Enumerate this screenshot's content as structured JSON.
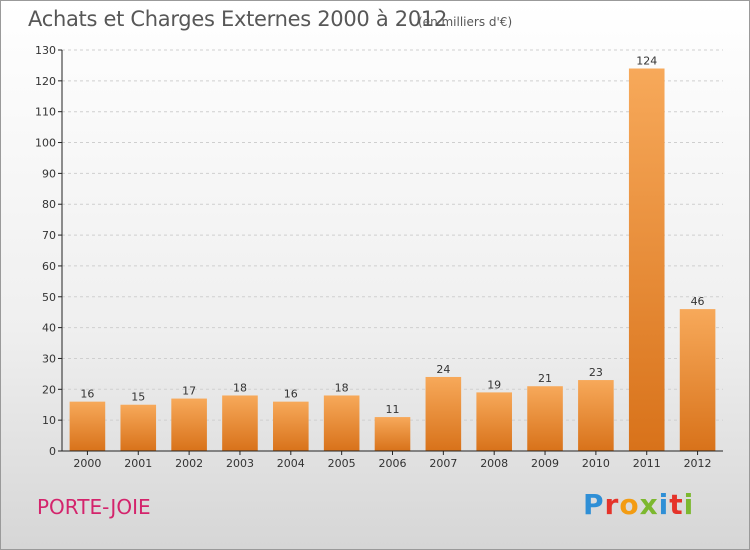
{
  "header": {
    "title": "Achats et Charges Externes 2000 à 2012",
    "subtitle": "(en milliers d'€)"
  },
  "footer": {
    "commune": "PORTE-JOIE",
    "brand": "Proxiti",
    "brand_colors": [
      "#2f8fd6",
      "#e5332a",
      "#f39c12",
      "#7cb82f",
      "#2f8fd6",
      "#e5332a",
      "#7cb82f"
    ]
  },
  "colors": {
    "bar_light": "#f7a95a",
    "bar_dark": "#d8721a",
    "grid": "#cfcfcf",
    "axis": "#222222"
  },
  "chart_data": {
    "type": "bar",
    "categories": [
      "2000",
      "2001",
      "2002",
      "2003",
      "2004",
      "2005",
      "2006",
      "2007",
      "2008",
      "2009",
      "2010",
      "2011",
      "2012"
    ],
    "values": [
      16,
      15,
      17,
      18,
      16,
      18,
      11,
      24,
      19,
      21,
      23,
      124,
      46
    ],
    "title": "Achats et Charges Externes 2000 à 2012",
    "subtitle": "(en milliers d'€)",
    "ylim": [
      0,
      130
    ],
    "yticks": [
      0,
      10,
      20,
      30,
      40,
      50,
      60,
      70,
      80,
      90,
      100,
      110,
      120,
      130
    ],
    "grid": true,
    "data_labels": true
  }
}
